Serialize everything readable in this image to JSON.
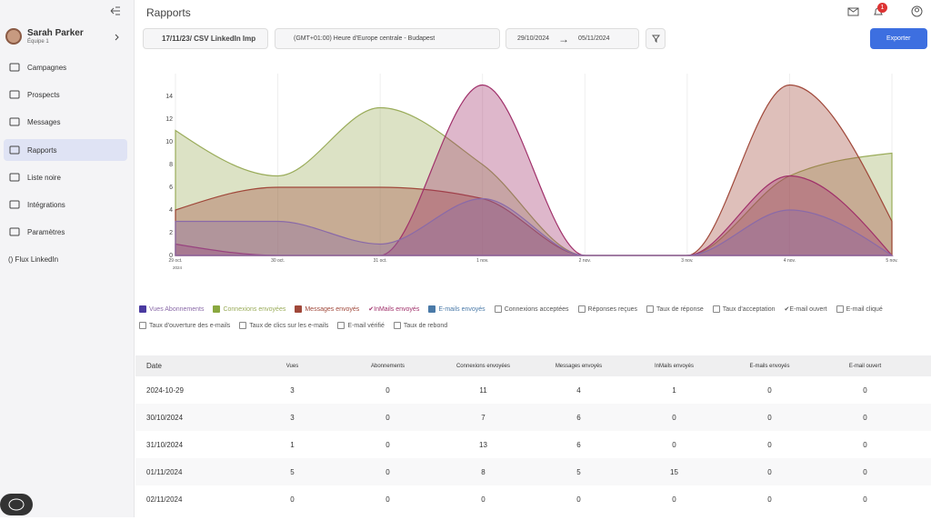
{
  "sidebar": {
    "user_name": "Sarah Parker",
    "team": "Équipe 1",
    "nav": [
      "Campagnes",
      "Prospects",
      "Messages",
      "Rapports",
      "Liste noire",
      "Intégrations",
      "Paramètres"
    ],
    "active_nav": 3,
    "footer_link": "() Flux LinkedIn"
  },
  "header": {
    "title": "Rapports",
    "notification_count": 1
  },
  "filters": {
    "campaign": "17/11/23/ CSV LinkedIn Imp",
    "timezone": "(GMT+01:00) Heure d'Europe centrale - Budapest",
    "date_from": "29/10/2024",
    "date_to": "05/11/2024",
    "export": "Exporter"
  },
  "chart_data": {
    "type": "area",
    "categories": [
      "29 oct.",
      "30 oct.",
      "31 oct.",
      "1 nov.",
      "2 nov.",
      "3 nov.",
      "4 nov.",
      "5 nov."
    ],
    "x_year": "2024",
    "ylim": [
      0,
      16
    ],
    "yticks": [
      0,
      2,
      4,
      6,
      8,
      10,
      12,
      14
    ],
    "grid": "x",
    "series": [
      {
        "name": "Vues Abonnements",
        "color": "#8a6aa8",
        "box_color": "#4a3aa0",
        "values": [
          3,
          3,
          1,
          5,
          0,
          0,
          4,
          0
        ]
      },
      {
        "name": "Connexions envoyées",
        "color": "#9aac5a",
        "box_color": "#8aa840",
        "values": [
          11,
          7,
          13,
          8,
          0,
          0,
          7,
          9
        ]
      },
      {
        "name": "Messages envoyés",
        "color": "#a0483a",
        "box_color": "#a0483a",
        "values": [
          4,
          6,
          6,
          5,
          0,
          0,
          15,
          3
        ]
      },
      {
        "name": "✔InMails envoyés",
        "color": "#a0306a",
        "box_color": null,
        "values": [
          1,
          0,
          0,
          15,
          0,
          0,
          7,
          0
        ]
      }
    ],
    "draw_order": [
      1,
      2,
      3,
      0
    ]
  },
  "legend_other": [
    {
      "label": "E-mails envoyés",
      "checked": true,
      "color": "#4a7aa8"
    },
    {
      "label": "Connexions acceptées",
      "checked": false,
      "color": null
    },
    {
      "label": "Réponses reçues",
      "checked": false,
      "color": null
    },
    {
      "label": "Taux de réponse",
      "checked": false,
      "color": null
    },
    {
      "label": "Taux d'acceptation",
      "checked": false,
      "color": null
    },
    {
      "label": "✔E-mail ouvert",
      "checked": false,
      "color": null
    },
    {
      "label": "E-mail cliqué",
      "checked": false,
      "color": null
    },
    {
      "label": "Taux d'ouverture des e-mails",
      "checked": false,
      "color": null
    },
    {
      "label": "Taux de clics sur les e-mails",
      "checked": false,
      "color": null
    },
    {
      "label": "E-mail vérifié",
      "checked": false,
      "color": null
    },
    {
      "label": "Taux de rebond",
      "checked": false,
      "color": null
    }
  ],
  "table": {
    "columns": [
      "Date",
      "Vues",
      "Abonnements",
      "Connexions envoyées",
      "Messages envoyés",
      "InMails envoyés",
      "E-mails envoyés",
      "E-mail ouvert"
    ],
    "rows": [
      [
        "2024-10-29",
        3,
        0,
        11,
        4,
        1,
        0,
        0
      ],
      [
        "30/10/2024",
        3,
        0,
        7,
        6,
        0,
        0,
        0
      ],
      [
        "31/10/2024",
        1,
        0,
        13,
        6,
        0,
        0,
        0
      ],
      [
        "01/11/2024",
        5,
        0,
        8,
        5,
        15,
        0,
        0
      ],
      [
        "02/11/2024",
        0,
        0,
        0,
        0,
        0,
        0,
        0
      ]
    ]
  }
}
